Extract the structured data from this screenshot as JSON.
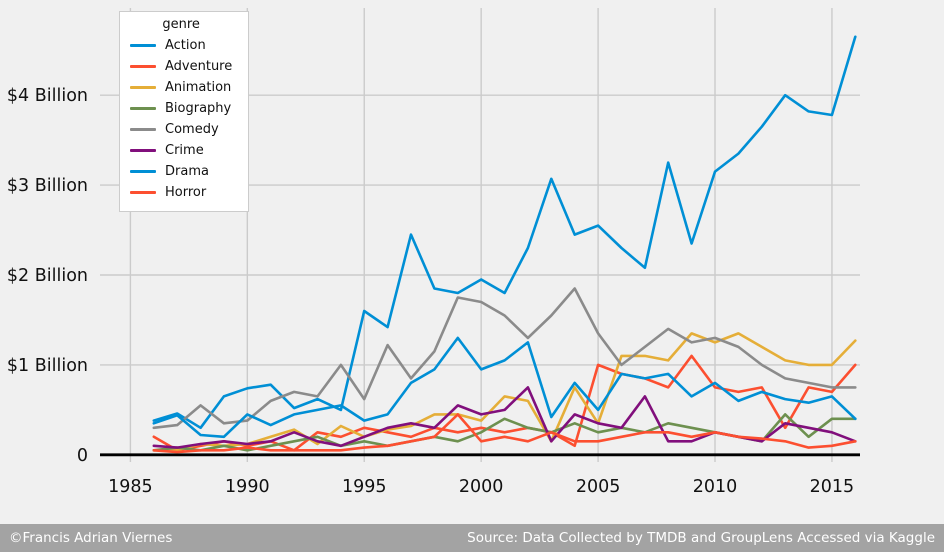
{
  "footer": {
    "left": "©Francis Adrian Viernes",
    "right": "Source: Data Collected by TMDB and GroupLens Accessed via Kaggle"
  },
  "colors": {
    "background": "#f0f0f0",
    "grid": "#cbcbcb",
    "zero_line": "#000000",
    "tick_text": "#111111",
    "footer_bg": "#a3a3a3",
    "footer_text": "#ffffff"
  },
  "chart_data": {
    "type": "line",
    "title": "",
    "legend_title": "genre",
    "legend_position": "upper left",
    "grid": true,
    "xlim": [
      1983.7,
      2016.2
    ],
    "ylim": [
      -0.08,
      4.97
    ],
    "xticks": [
      1985,
      1990,
      1995,
      2000,
      2005,
      2010,
      2015
    ],
    "yticks": [
      {
        "value": 0,
        "label": "0"
      },
      {
        "value": 1,
        "label": "$1 Billion"
      },
      {
        "value": 2,
        "label": "$2 Billion"
      },
      {
        "value": 3,
        "label": "$3 Billion"
      },
      {
        "value": 4,
        "label": "$4 Billion"
      }
    ],
    "x": [
      1986,
      1987,
      1988,
      1989,
      1990,
      1991,
      1992,
      1993,
      1994,
      1995,
      1996,
      1997,
      1998,
      1999,
      2000,
      2001,
      2002,
      2003,
      2004,
      2005,
      2006,
      2007,
      2008,
      2009,
      2010,
      2011,
      2012,
      2013,
      2014,
      2015,
      2016
    ],
    "series": [
      {
        "name": "Action",
        "color": "#008fd5",
        "values": [
          0.38,
          0.46,
          0.3,
          0.65,
          0.74,
          0.78,
          0.52,
          0.62,
          0.5,
          1.6,
          1.42,
          2.45,
          1.85,
          1.8,
          1.95,
          1.8,
          2.3,
          3.07,
          2.45,
          2.55,
          2.3,
          2.08,
          3.25,
          2.35,
          3.15,
          3.35,
          3.65,
          4.0,
          3.82,
          3.78,
          4.65
        ]
      },
      {
        "name": "Adventure",
        "color": "#fc4f30",
        "values": [
          0.2,
          0.05,
          0.1,
          0.15,
          0.1,
          0.15,
          0.05,
          0.25,
          0.2,
          0.3,
          0.25,
          0.2,
          0.3,
          0.25,
          0.3,
          0.25,
          0.3,
          0.25,
          0.1,
          1.0,
          0.9,
          0.85,
          0.75,
          1.1,
          0.75,
          0.7,
          0.75,
          0.3,
          0.75,
          0.7,
          1.0
        ]
      },
      {
        "name": "Animation",
        "color": "#e5ae38",
        "values": [
          0.05,
          0.05,
          0.12,
          0.1,
          0.12,
          0.2,
          0.28,
          0.12,
          0.32,
          0.2,
          0.28,
          0.32,
          0.45,
          0.45,
          0.38,
          0.65,
          0.6,
          0.15,
          0.75,
          0.35,
          1.1,
          1.1,
          1.05,
          1.35,
          1.25,
          1.35,
          1.2,
          1.05,
          1.0,
          1.0,
          1.27
        ]
      },
      {
        "name": "Biography",
        "color": "#6d904f",
        "values": [
          0.05,
          0.08,
          0.05,
          0.1,
          0.05,
          0.1,
          0.15,
          0.2,
          0.1,
          0.15,
          0.1,
          0.15,
          0.2,
          0.15,
          0.25,
          0.4,
          0.3,
          0.25,
          0.35,
          0.25,
          0.3,
          0.25,
          0.35,
          0.3,
          0.25,
          0.2,
          0.15,
          0.45,
          0.2,
          0.4,
          0.4
        ]
      },
      {
        "name": "Comedy",
        "color": "#8b8b8b",
        "values": [
          0.3,
          0.33,
          0.55,
          0.35,
          0.38,
          0.6,
          0.7,
          0.65,
          1.0,
          0.62,
          1.22,
          0.85,
          1.15,
          1.75,
          1.7,
          1.55,
          1.3,
          1.55,
          1.85,
          1.35,
          1.0,
          1.2,
          1.4,
          1.25,
          1.3,
          1.2,
          1.0,
          0.85,
          0.8,
          0.75,
          0.75
        ]
      },
      {
        "name": "Crime",
        "color": "#810f7c",
        "values": [
          0.1,
          0.08,
          0.12,
          0.15,
          0.12,
          0.15,
          0.25,
          0.15,
          0.1,
          0.2,
          0.3,
          0.35,
          0.3,
          0.55,
          0.45,
          0.5,
          0.75,
          0.15,
          0.45,
          0.35,
          0.3,
          0.65,
          0.15,
          0.15,
          0.25,
          0.2,
          0.15,
          0.35,
          0.3,
          0.25,
          0.15
        ]
      },
      {
        "name": "Drama",
        "color": "#008fd5",
        "values": [
          0.35,
          0.44,
          0.22,
          0.2,
          0.45,
          0.33,
          0.45,
          0.5,
          0.55,
          0.38,
          0.45,
          0.8,
          0.95,
          1.3,
          0.95,
          1.05,
          1.25,
          0.42,
          0.8,
          0.5,
          0.9,
          0.85,
          0.9,
          0.65,
          0.8,
          0.6,
          0.7,
          0.62,
          0.58,
          0.65,
          0.4
        ]
      },
      {
        "name": "Horror",
        "color": "#fc4f30",
        "values": [
          0.05,
          0.03,
          0.05,
          0.05,
          0.08,
          0.05,
          0.05,
          0.05,
          0.05,
          0.08,
          0.1,
          0.15,
          0.2,
          0.45,
          0.15,
          0.2,
          0.15,
          0.25,
          0.15,
          0.15,
          0.2,
          0.25,
          0.25,
          0.2,
          0.25,
          0.2,
          0.18,
          0.15,
          0.08,
          0.1,
          0.15
        ]
      }
    ]
  }
}
